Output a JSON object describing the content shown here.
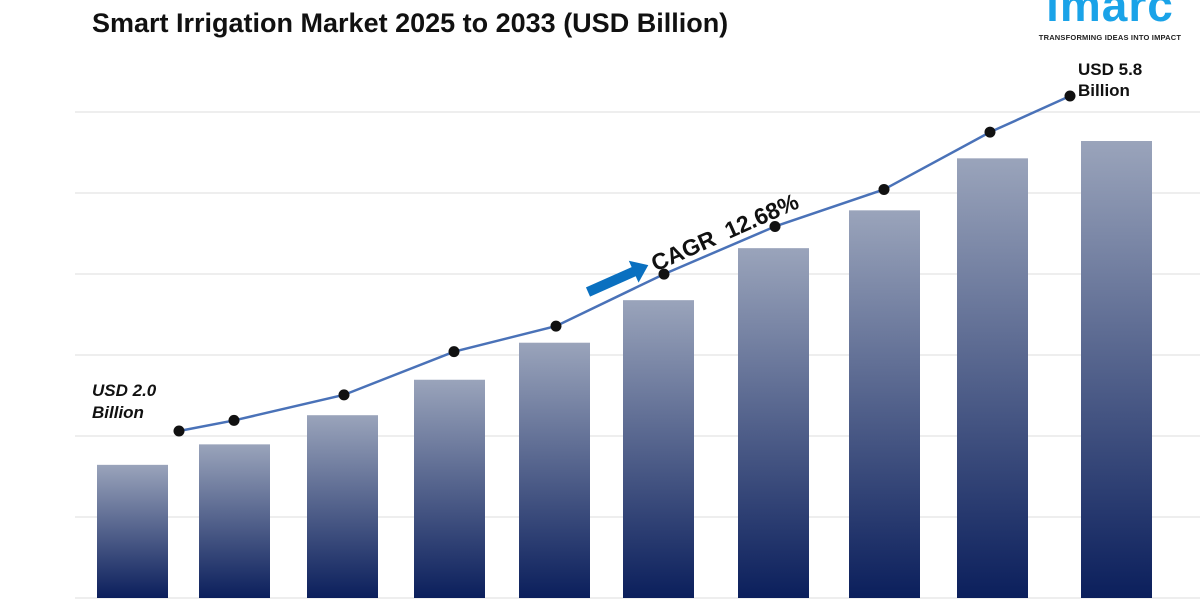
{
  "chart_data": {
    "type": "bar",
    "title": "Smart Irrigation Market 2025 to 2033 (USD Billion)",
    "bar_values": [
      1.69,
      1.95,
      2.32,
      2.77,
      3.24,
      3.78,
      4.44,
      4.92,
      5.58,
      5.8
    ],
    "line_values": [
      2.0,
      2.12,
      2.41,
      2.9,
      3.19,
      3.78,
      4.32,
      4.74,
      5.39,
      5.8
    ],
    "ylim": [
      0,
      7.3
    ],
    "grid": true,
    "start_label": [
      "USD 2.0",
      "Billion"
    ],
    "end_label": [
      "USD 5.8",
      "Billion"
    ],
    "cagr_label": "CAGR  12.68%",
    "colors": {
      "bar_top": "#9aa4bb",
      "bar_bottom": "#0b1f5c",
      "line": "#4a72b8",
      "arrow": "#0a70c0"
    }
  },
  "logo": {
    "word": "imarc",
    "tagline": "TRANSFORMING IDEAS INTO IMPACT"
  }
}
